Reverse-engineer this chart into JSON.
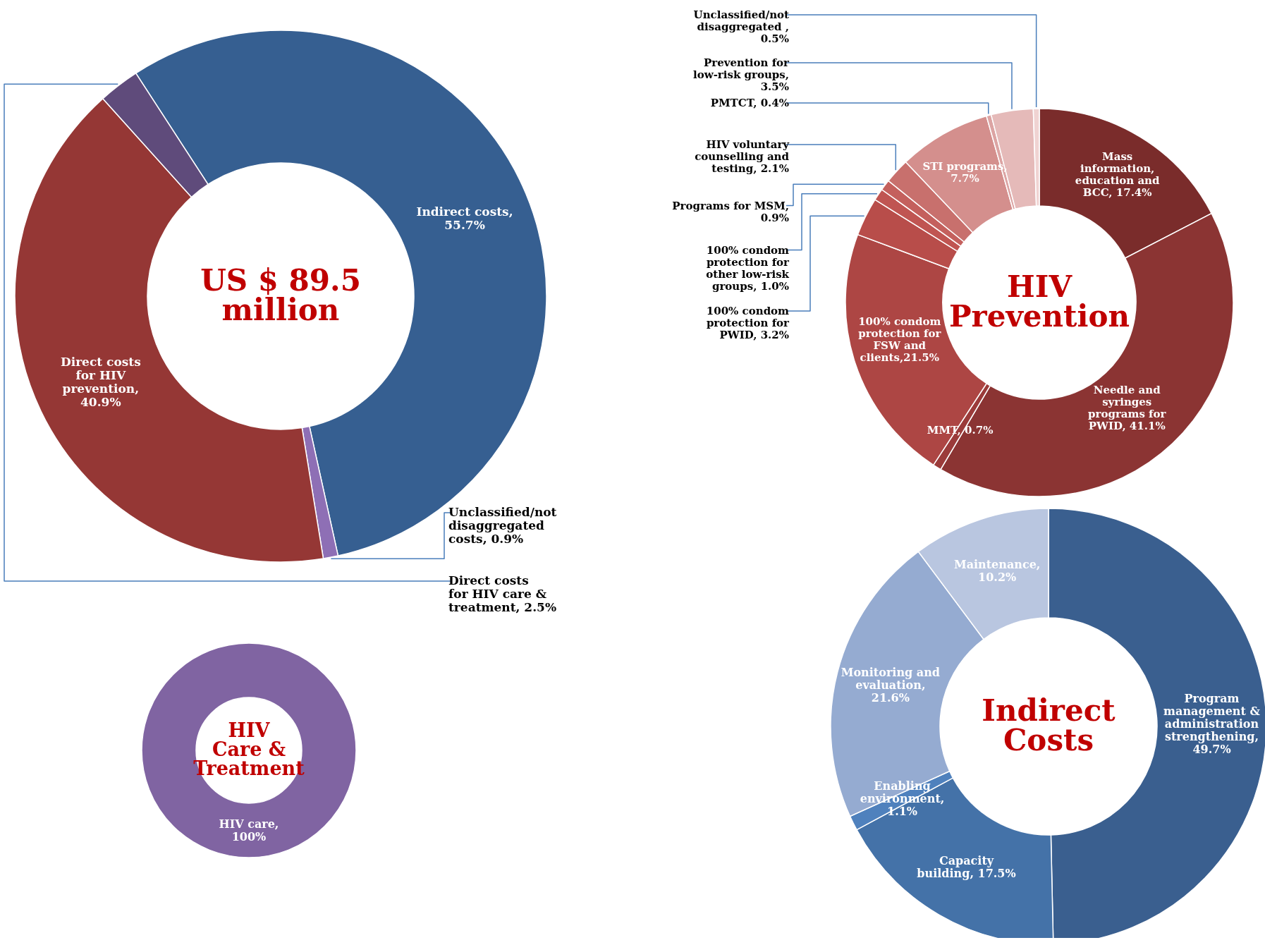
{
  "chart_data": [
    {
      "type": "donut",
      "title": "US $ 89.5 million",
      "categories": [
        "Indirect costs, 55.7%",
        "Unclassified/not disaggregated costs, 0.9%",
        "Direct costs for HIV prevention, 40.9%",
        "Direct costs for HIV care & treatment, 2.5%"
      ],
      "values": [
        55.7,
        0.9,
        40.9,
        2.5
      ],
      "colors": [
        "#365f91",
        "#8e6fb5",
        "#953735",
        "#5f4b7b"
      ]
    },
    {
      "type": "donut",
      "title": "HIV Prevention",
      "categories": [
        "Mass information, education and BCC, 17.4%",
        "Needle and syringes programs for PWID, 41.1%",
        "MMT, 0.7%",
        "100% condom protection for FSW and clients,21.5%",
        "100% condom protection for PWID, 3.2%",
        "100% condom protection for other low-risk groups, 1.0%",
        "Programs for MSM, 0.9%",
        "HIV voluntary counselling and testing, 2.1%",
        "STI programs, 7.7%",
        "PMTCT, 0.4%",
        "Prevention for low-risk groups, 3.5%",
        "Unclassified/not disaggregated , 0.5%"
      ],
      "values": [
        17.4,
        41.1,
        0.7,
        21.5,
        3.2,
        1.0,
        0.9,
        2.1,
        7.7,
        0.4,
        3.5,
        0.5
      ],
      "colors": [
        "#7a2c2b",
        "#8b3433",
        "#9b3b3a",
        "#ad4644",
        "#b84d4a",
        "#c05552",
        "#c4605d",
        "#c8706d",
        "#d48f8d",
        "#dca4a3",
        "#e5bab9",
        "#f0d3d2"
      ]
    },
    {
      "type": "donut",
      "title": "HIV Care & Treatment",
      "categories": [
        "HIV care, 100%"
      ],
      "values": [
        100
      ],
      "colors": [
        "#8064a2"
      ]
    },
    {
      "type": "donut",
      "title": "Indirect Costs",
      "categories": [
        "Program management & administration strengthening, 49.7%",
        "Capacity building, 17.5%",
        "Enabling environment, 1.1%",
        "Monitoring and evaluation, 21.6%",
        "Maintenance, 10.2%"
      ],
      "values": [
        49.7,
        17.5,
        1.1,
        21.6,
        10.2
      ],
      "colors": [
        "#3a5f8f",
        "#4472a8",
        "#4f81bd",
        "#95abd1",
        "#b9c6e0"
      ]
    }
  ]
}
